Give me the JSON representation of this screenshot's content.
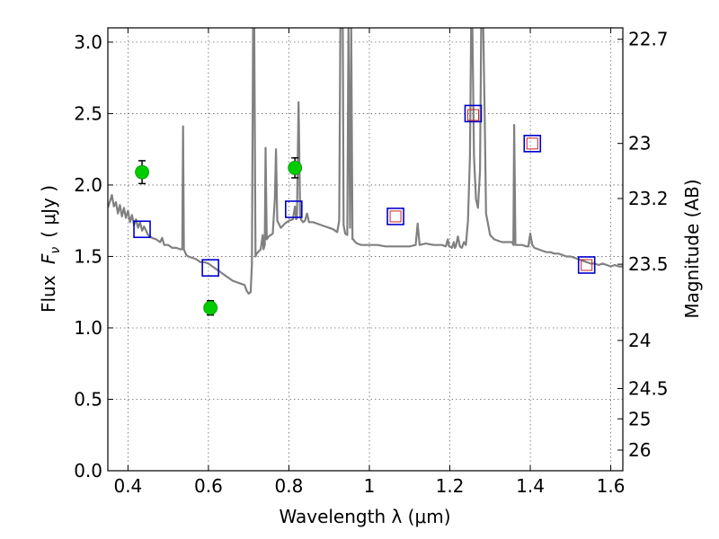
{
  "chart_data": {
    "type": "line",
    "xlabel": "Wavelength  λ (μm)",
    "ylabel_prefix": "Flux ",
    "ylabel_symbol": "F",
    "ylabel_subscript": "ν",
    "ylabel_unit": "( μJy )",
    "y2label": "Magnitude (AB)",
    "xlim": [
      0.35,
      1.63
    ],
    "ylim": [
      0.0,
      3.1
    ],
    "grid": true,
    "x_ticks": [
      0.4,
      0.6,
      0.8,
      1.0,
      1.2,
      1.4,
      1.6
    ],
    "x_tick_labels": [
      "0.4",
      "0.6",
      "0.8",
      "1",
      "1.2",
      "1.4",
      "1.6"
    ],
    "y_ticks": [
      0.0,
      0.5,
      1.0,
      1.5,
      2.0,
      2.5,
      3.0
    ],
    "y_tick_labels": [
      "0.0",
      "0.5",
      "1.0",
      "1.5",
      "2.0",
      "2.5",
      "3.0"
    ],
    "mag_ticks": [
      22.7,
      23,
      23.2,
      23.5,
      24,
      24.5,
      25,
      26
    ],
    "mag_tick_labels": [
      "22.7",
      "23",
      "23.2",
      "23.5",
      "24",
      "24.5",
      "25",
      "26"
    ],
    "colors": {
      "spectrum": "#808080",
      "model_box": "#0000cc",
      "obs_box": "#cc2222",
      "measured_point": "#00cc00",
      "errorbar": "#000000",
      "grid": "#666666"
    },
    "series": [
      {
        "kind": "template_spectrum",
        "points": [
          [
            0.35,
            1.84
          ],
          [
            0.36,
            1.93
          ],
          [
            0.365,
            1.85
          ],
          [
            0.37,
            1.88
          ],
          [
            0.375,
            1.8
          ],
          [
            0.38,
            1.86
          ],
          [
            0.385,
            1.78
          ],
          [
            0.39,
            1.84
          ],
          [
            0.395,
            1.77
          ],
          [
            0.4,
            1.82
          ],
          [
            0.405,
            1.74
          ],
          [
            0.41,
            1.79
          ],
          [
            0.415,
            1.72
          ],
          [
            0.42,
            1.76
          ],
          [
            0.425,
            1.7
          ],
          [
            0.43,
            1.74
          ],
          [
            0.435,
            1.68
          ],
          [
            0.44,
            1.71
          ],
          [
            0.45,
            1.65
          ],
          [
            0.46,
            1.63
          ],
          [
            0.47,
            1.62
          ],
          [
            0.48,
            1.6
          ],
          [
            0.485,
            1.63
          ],
          [
            0.49,
            1.58
          ],
          [
            0.5,
            1.58
          ],
          [
            0.51,
            1.56
          ],
          [
            0.52,
            1.56
          ],
          [
            0.53,
            1.55
          ],
          [
            0.535,
            1.55
          ],
          [
            0.537,
            2.41
          ],
          [
            0.539,
            1.55
          ],
          [
            0.545,
            1.51
          ],
          [
            0.55,
            1.5
          ],
          [
            0.56,
            1.49
          ],
          [
            0.57,
            1.48
          ],
          [
            0.58,
            1.46
          ],
          [
            0.59,
            1.46
          ],
          [
            0.6,
            1.45
          ],
          [
            0.61,
            1.43
          ],
          [
            0.62,
            1.41
          ],
          [
            0.63,
            1.39
          ],
          [
            0.64,
            1.37
          ],
          [
            0.65,
            1.35
          ],
          [
            0.66,
            1.33
          ],
          [
            0.67,
            1.32
          ],
          [
            0.68,
            1.31
          ],
          [
            0.69,
            1.3
          ],
          [
            0.695,
            1.26
          ],
          [
            0.7,
            1.24
          ],
          [
            0.705,
            1.25
          ],
          [
            0.708,
            1.45
          ],
          [
            0.711,
            3.1
          ],
          [
            0.714,
            3.1
          ],
          [
            0.717,
            1.5
          ],
          [
            0.72,
            1.52
          ],
          [
            0.73,
            1.55
          ],
          [
            0.735,
            1.65
          ],
          [
            0.737,
            1.55
          ],
          [
            0.74,
            1.58
          ],
          [
            0.742,
            2.26
          ],
          [
            0.745,
            1.62
          ],
          [
            0.75,
            1.64
          ],
          [
            0.76,
            1.66
          ],
          [
            0.765,
            1.9
          ],
          [
            0.768,
            2.25
          ],
          [
            0.771,
            1.75
          ],
          [
            0.78,
            1.7
          ],
          [
            0.79,
            1.73
          ],
          [
            0.8,
            1.75
          ],
          [
            0.81,
            1.76
          ],
          [
            0.815,
            1.85
          ],
          [
            0.818,
            1.76
          ],
          [
            0.82,
            1.77
          ],
          [
            0.824,
            2.58
          ],
          [
            0.828,
            1.78
          ],
          [
            0.83,
            1.76
          ],
          [
            0.835,
            1.74
          ],
          [
            0.84,
            1.75
          ],
          [
            0.845,
            1.8
          ],
          [
            0.85,
            1.74
          ],
          [
            0.86,
            1.74
          ],
          [
            0.87,
            1.73
          ],
          [
            0.88,
            1.72
          ],
          [
            0.89,
            1.71
          ],
          [
            0.9,
            1.7
          ],
          [
            0.91,
            1.69
          ],
          [
            0.915,
            1.68
          ],
          [
            0.92,
            1.67
          ],
          [
            0.925,
            1.75
          ],
          [
            0.928,
            3.1
          ],
          [
            0.934,
            3.1
          ],
          [
            0.936,
            1.72
          ],
          [
            0.94,
            1.66
          ],
          [
            0.945,
            1.65
          ],
          [
            0.948,
            3.1
          ],
          [
            0.952,
            1.7
          ],
          [
            0.955,
            3.1
          ],
          [
            0.958,
            1.62
          ],
          [
            0.96,
            1.62
          ],
          [
            0.965,
            1.6
          ],
          [
            0.97,
            1.59
          ],
          [
            0.98,
            1.58
          ],
          [
            1.0,
            1.58
          ],
          [
            1.02,
            1.58
          ],
          [
            1.04,
            1.57
          ],
          [
            1.06,
            1.57
          ],
          [
            1.08,
            1.57
          ],
          [
            1.1,
            1.57
          ],
          [
            1.115,
            1.58
          ],
          [
            1.12,
            1.73
          ],
          [
            1.125,
            1.58
          ],
          [
            1.14,
            1.59
          ],
          [
            1.16,
            1.58
          ],
          [
            1.18,
            1.58
          ],
          [
            1.19,
            1.57
          ],
          [
            1.195,
            1.62
          ],
          [
            1.198,
            1.57
          ],
          [
            1.2,
            1.57
          ],
          [
            1.205,
            1.56
          ],
          [
            1.21,
            1.6
          ],
          [
            1.212,
            1.56
          ],
          [
            1.215,
            1.57
          ],
          [
            1.22,
            1.64
          ],
          [
            1.225,
            1.57
          ],
          [
            1.23,
            1.56
          ],
          [
            1.235,
            1.6
          ],
          [
            1.24,
            1.58
          ],
          [
            1.245,
            1.75
          ],
          [
            1.25,
            2.2
          ],
          [
            1.253,
            3.1
          ],
          [
            1.256,
            3.1
          ],
          [
            1.26,
            2.2
          ],
          [
            1.265,
            1.9
          ],
          [
            1.27,
            1.84
          ],
          [
            1.275,
            2.1
          ],
          [
            1.278,
            3.1
          ],
          [
            1.283,
            3.1
          ],
          [
            1.287,
            2.4
          ],
          [
            1.29,
            1.8
          ],
          [
            1.3,
            1.65
          ],
          [
            1.31,
            1.62
          ],
          [
            1.32,
            1.61
          ],
          [
            1.33,
            1.6
          ],
          [
            1.34,
            1.6
          ],
          [
            1.35,
            1.6
          ],
          [
            1.355,
            1.6
          ],
          [
            1.358,
            1.58
          ],
          [
            1.36,
            2.42
          ],
          [
            1.363,
            1.58
          ],
          [
            1.37,
            1.58
          ],
          [
            1.38,
            1.58
          ],
          [
            1.39,
            1.57
          ],
          [
            1.395,
            1.57
          ],
          [
            1.4,
            1.66
          ],
          [
            1.405,
            1.58
          ],
          [
            1.41,
            1.56
          ],
          [
            1.42,
            1.55
          ],
          [
            1.43,
            1.54
          ],
          [
            1.44,
            1.53
          ],
          [
            1.45,
            1.53
          ],
          [
            1.46,
            1.52
          ],
          [
            1.47,
            1.52
          ],
          [
            1.48,
            1.51
          ],
          [
            1.49,
            1.5
          ],
          [
            1.5,
            1.5
          ],
          [
            1.51,
            1.49
          ],
          [
            1.52,
            1.48
          ],
          [
            1.53,
            1.47
          ],
          [
            1.54,
            1.46
          ],
          [
            1.55,
            1.45
          ],
          [
            1.56,
            1.45
          ],
          [
            1.57,
            1.44
          ],
          [
            1.58,
            1.45
          ],
          [
            1.59,
            1.44
          ],
          [
            1.6,
            1.43
          ],
          [
            1.61,
            1.44
          ],
          [
            1.62,
            1.43
          ],
          [
            1.63,
            1.43
          ]
        ]
      },
      {
        "kind": "model_photometry_box",
        "points": [
          [
            0.435,
            1.69
          ],
          [
            0.605,
            1.42
          ],
          [
            0.812,
            1.83
          ],
          [
            1.065,
            1.78
          ],
          [
            1.258,
            2.5
          ],
          [
            1.405,
            2.29
          ],
          [
            1.54,
            1.44
          ]
        ]
      },
      {
        "kind": "observed_photometry_box",
        "points": [
          [
            1.065,
            1.78
          ],
          [
            1.258,
            2.49
          ],
          [
            1.405,
            2.29
          ],
          [
            1.54,
            1.44
          ]
        ]
      },
      {
        "kind": "measured_points",
        "points": [
          {
            "x": 0.435,
            "y": 2.09,
            "yerr": 0.08
          },
          {
            "x": 0.605,
            "y": 1.14,
            "yerr": 0.05
          },
          {
            "x": 0.815,
            "y": 2.12,
            "yerr": 0.07
          }
        ]
      }
    ]
  }
}
